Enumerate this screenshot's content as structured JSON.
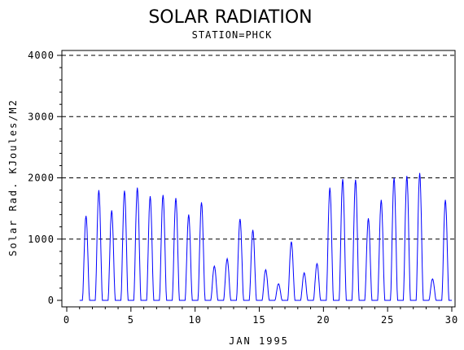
{
  "chart_data": {
    "type": "line",
    "title": "SOLAR RADIATION",
    "subtitle": "STATION=PHCK",
    "xlabel": "JAN 1995",
    "ylabel": "Solar Rad. KJoules/M2",
    "xlim": [
      0,
      30
    ],
    "ylim": [
      0,
      4000
    ],
    "x_ticks": [
      0,
      5,
      10,
      15,
      20,
      25,
      30
    ],
    "y_ticks": [
      0,
      1000,
      2000,
      3000,
      4000
    ],
    "grid": "dashed horizontal at y ticks",
    "colors": {
      "series": "#0000ff",
      "axis": "#000000",
      "grid": "#000000"
    },
    "series": [
      {
        "daily_peaks": [
          {
            "day": 1,
            "peak": 1380
          },
          {
            "day": 2,
            "peak": 1800
          },
          {
            "day": 3,
            "peak": 1470
          },
          {
            "day": 4,
            "peak": 1790
          },
          {
            "day": 5,
            "peak": 1840
          },
          {
            "day": 6,
            "peak": 1700
          },
          {
            "day": 7,
            "peak": 1720
          },
          {
            "day": 8,
            "peak": 1670
          },
          {
            "day": 9,
            "peak": 1400
          },
          {
            "day": 10,
            "peak": 1600
          },
          {
            "day": 11,
            "peak": 560
          },
          {
            "day": 12,
            "peak": 680
          },
          {
            "day": 13,
            "peak": 1330
          },
          {
            "day": 14,
            "peak": 1150
          },
          {
            "day": 15,
            "peak": 500
          },
          {
            "day": 16,
            "peak": 270
          },
          {
            "day": 17,
            "peak": 960
          },
          {
            "day": 18,
            "peak": 450
          },
          {
            "day": 19,
            "peak": 600
          },
          {
            "day": 20,
            "peak": 1840
          },
          {
            "day": 21,
            "peak": 1980
          },
          {
            "day": 22,
            "peak": 1970
          },
          {
            "day": 23,
            "peak": 1340
          },
          {
            "day": 24,
            "peak": 1640
          },
          {
            "day": 25,
            "peak": 2000
          },
          {
            "day": 26,
            "peak": 2030
          },
          {
            "day": 27,
            "peak": 2080
          },
          {
            "day": 28,
            "peak": 350
          },
          {
            "day": 29,
            "peak": 1640
          }
        ]
      }
    ]
  }
}
